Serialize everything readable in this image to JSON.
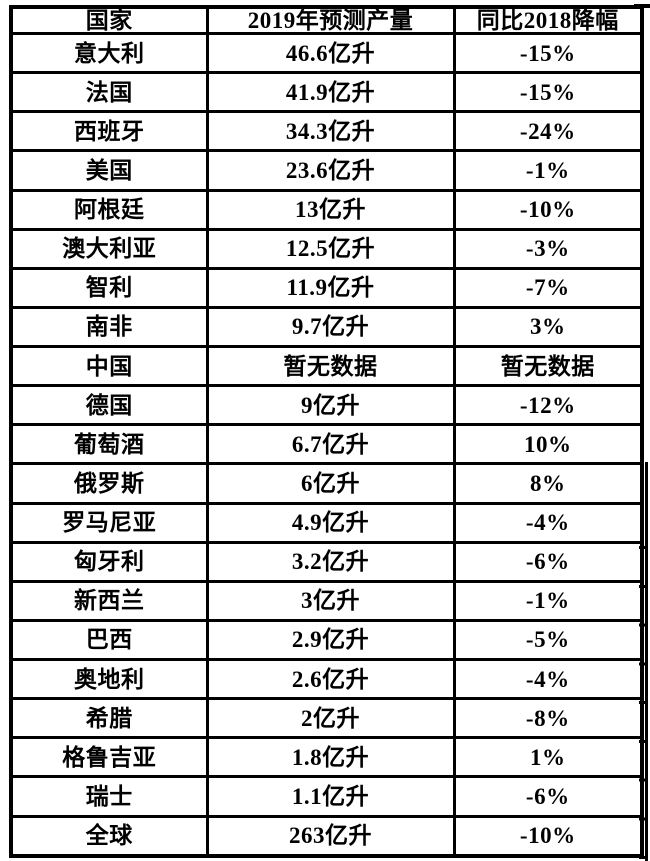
{
  "table": {
    "columns": [
      "国家",
      "2019年预测产量",
      "同比2018降幅"
    ],
    "rows": [
      [
        "意大利",
        "46.6亿升",
        "-15%"
      ],
      [
        "法国",
        "41.9亿升",
        "-15%"
      ],
      [
        "西班牙",
        "34.3亿升",
        "-24%"
      ],
      [
        "美国",
        "23.6亿升",
        "-1%"
      ],
      [
        "阿根廷",
        "13亿升",
        "-10%"
      ],
      [
        "澳大利亚",
        "12.5亿升",
        "-3%"
      ],
      [
        "智利",
        "11.9亿升",
        "-7%"
      ],
      [
        "南非",
        "9.7亿升",
        "3%"
      ],
      [
        "中国",
        "暂无数据",
        "暂无数据"
      ],
      [
        "德国",
        "9亿升",
        "-12%"
      ],
      [
        "葡萄酒",
        "6.7亿升",
        "10%"
      ],
      [
        "俄罗斯",
        "6亿升",
        "8%"
      ],
      [
        "罗马尼亚",
        "4.9亿升",
        "-4%"
      ],
      [
        "匈牙利",
        "3.2亿升",
        "-6%"
      ],
      [
        "新西兰",
        "3亿升",
        "-1%"
      ],
      [
        "巴西",
        "2.9亿升",
        "-5%"
      ],
      [
        "奥地利",
        "2.6亿升",
        "-4%"
      ],
      [
        "希腊",
        "2亿升",
        "-8%"
      ],
      [
        "格鲁吉亚",
        "1.8亿升",
        "1%"
      ],
      [
        "瑞士",
        "1.1亿升",
        "-6%"
      ],
      [
        "全球",
        "263亿升",
        "-10%"
      ]
    ]
  },
  "chart_data": {
    "type": "table",
    "title": "",
    "columns": [
      "国家",
      "2019年预测产量",
      "同比2018降幅"
    ],
    "production_unit": "亿升",
    "categories": [
      "意大利",
      "法国",
      "西班牙",
      "美国",
      "阿根廷",
      "澳大利亚",
      "智利",
      "南非",
      "中国",
      "德国",
      "葡萄酒",
      "俄罗斯",
      "罗马尼亚",
      "匈牙利",
      "新西兰",
      "巴西",
      "奥地利",
      "希腊",
      "格鲁吉亚",
      "瑞士",
      "全球"
    ],
    "series": [
      {
        "name": "2019年预测产量(亿升)",
        "values": [
          46.6,
          41.9,
          34.3,
          23.6,
          13,
          12.5,
          11.9,
          9.7,
          null,
          9,
          6.7,
          6,
          4.9,
          3.2,
          3,
          2.9,
          2.6,
          2,
          1.8,
          1.1,
          263
        ]
      },
      {
        "name": "同比2018降幅(%)",
        "values": [
          -15,
          -15,
          -24,
          -1,
          -10,
          -3,
          -7,
          3,
          null,
          -12,
          10,
          8,
          -4,
          -6,
          -1,
          -5,
          -4,
          -8,
          1,
          -6,
          -10
        ]
      }
    ],
    "no_data_label": "暂无数据"
  },
  "colors": {
    "border": "#000000",
    "text": "#000000",
    "background": "#ffffff"
  }
}
